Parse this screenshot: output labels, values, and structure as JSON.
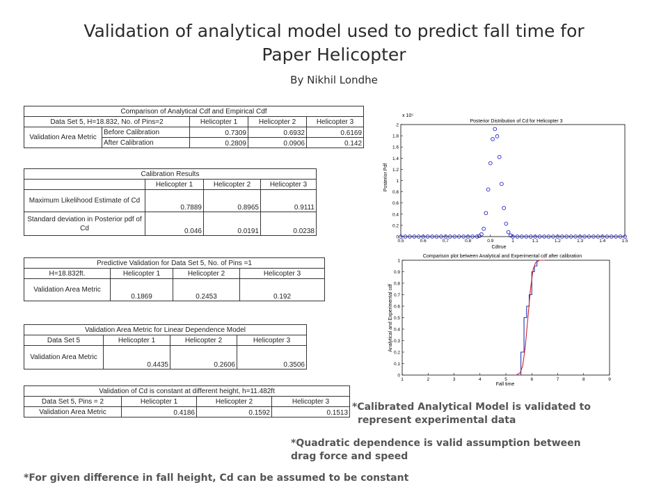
{
  "header": {
    "title_line1": "Validation of analytical model used to predict fall time for",
    "title_line2": "Paper Helicopter",
    "subtitle": "By Nikhil Londhe"
  },
  "table1": {
    "caption": "Comparison of Analytical Cdf and Empirical Cdf",
    "head": [
      "Data Set 5, H=18.832, No. of Pins=2",
      "Helicopter 1",
      "Helicopter 2",
      "Helicopter 3"
    ],
    "group_label": "Validation Area Metric",
    "rows": [
      {
        "label": "Before Calibration",
        "v": [
          "0.7309",
          "0.6932",
          "0.6169"
        ]
      },
      {
        "label": "After Calibration",
        "v": [
          "0.2809",
          "0.0906",
          "0.142"
        ]
      }
    ]
  },
  "table2": {
    "caption": "Calibration Results",
    "head": [
      "",
      "Helicopter 1",
      "Helicopter 2",
      "Helicopter 3"
    ],
    "rows": [
      {
        "label": "Maximum Likelihood Estimate of Cd",
        "v": [
          "0.7889",
          "0.8965",
          "0.9111"
        ]
      },
      {
        "label": "Standard deviation in Posterior pdf of Cd",
        "v": [
          "0.046",
          "0.0191",
          "0.0238"
        ]
      }
    ]
  },
  "table3": {
    "caption": "Predictive Validation for Data Set 5, No. of Pins =1",
    "head": [
      "H=18.832ft.",
      "Helicopter 1",
      "Helicopter 2",
      "Helicopter 3"
    ],
    "rows": [
      {
        "label": "Validation Area Metric",
        "v": [
          "0.1869",
          "0.2453",
          "0.192"
        ]
      }
    ]
  },
  "table4": {
    "caption": "Validation Area Metric for Linear Dependence Model",
    "head": [
      "Data Set 5",
      "Helicopter 1",
      "Helicopter 2",
      "Helicopter 3"
    ],
    "rows": [
      {
        "label": "Validation Area Metric",
        "v": [
          "0.4435",
          "0.2606",
          "0.3506"
        ]
      }
    ]
  },
  "table5": {
    "caption": "Validation of Cd is constant at different height, h=11.482ft",
    "head": [
      "Data Set 5, Pins = 2",
      "Helicopter 1",
      "Helicopter 2",
      "Helicopter 3"
    ],
    "rows": [
      {
        "label": "Validation Area Metric",
        "v": [
          "0.4186",
          "0.1592",
          "0.1513"
        ]
      }
    ]
  },
  "notes": {
    "n1_line1": "*Calibrated Analytical Model is validated to",
    "n1_line2": "represent experimental data",
    "n2_line1": "*Quadratic dependence is valid assumption between",
    "n2_line2": "drag force and speed",
    "n3": "*For given difference in fall height, Cd can be assumed to be constant"
  },
  "chart_data": [
    {
      "type": "scatter",
      "title": "Posterior Distribution of Cd for Helicopter 3",
      "xlabel": "Cdtrue",
      "ylabel": "Posterior Pdf",
      "exponent_label": "x 10⁵",
      "xlim": [
        0.5,
        1.5
      ],
      "ylim": [
        0,
        2.0
      ],
      "xticks": [
        "0.5",
        "0.6",
        "0.7",
        "0.8",
        "0.9",
        "1",
        "1.1",
        "1.2",
        "1.3",
        "1.4",
        "1.5"
      ],
      "yticks": [
        "0",
        "0.2",
        "0.4",
        "0.6",
        "0.8",
        "1",
        "1.2",
        "1.4",
        "1.6",
        "1.8",
        "2"
      ],
      "marker_color": "#2222cc",
      "points": [
        [
          0.5,
          0
        ],
        [
          0.52,
          0
        ],
        [
          0.54,
          0
        ],
        [
          0.56,
          0
        ],
        [
          0.58,
          0
        ],
        [
          0.6,
          0
        ],
        [
          0.62,
          0
        ],
        [
          0.64,
          0
        ],
        [
          0.66,
          0
        ],
        [
          0.68,
          0
        ],
        [
          0.7,
          0
        ],
        [
          0.72,
          0
        ],
        [
          0.74,
          0
        ],
        [
          0.76,
          0
        ],
        [
          0.78,
          0
        ],
        [
          0.8,
          0
        ],
        [
          0.82,
          0
        ],
        [
          0.84,
          0
        ],
        [
          0.85,
          0.01
        ],
        [
          0.86,
          0.04
        ],
        [
          0.87,
          0.14
        ],
        [
          0.88,
          0.42
        ],
        [
          0.89,
          0.84
        ],
        [
          0.9,
          1.31
        ],
        [
          0.91,
          1.74
        ],
        [
          0.92,
          1.92
        ],
        [
          0.93,
          1.79
        ],
        [
          0.94,
          1.42
        ],
        [
          0.95,
          0.94
        ],
        [
          0.96,
          0.51
        ],
        [
          0.97,
          0.23
        ],
        [
          0.98,
          0.08
        ],
        [
          0.99,
          0.02
        ],
        [
          1.0,
          0
        ],
        [
          1.02,
          0
        ],
        [
          1.04,
          0
        ],
        [
          1.06,
          0
        ],
        [
          1.08,
          0
        ],
        [
          1.1,
          0
        ],
        [
          1.12,
          0
        ],
        [
          1.14,
          0
        ],
        [
          1.16,
          0
        ],
        [
          1.18,
          0
        ],
        [
          1.2,
          0
        ],
        [
          1.22,
          0
        ],
        [
          1.24,
          0
        ],
        [
          1.26,
          0
        ],
        [
          1.28,
          0
        ],
        [
          1.3,
          0
        ],
        [
          1.32,
          0
        ],
        [
          1.34,
          0
        ],
        [
          1.36,
          0
        ],
        [
          1.38,
          0
        ],
        [
          1.4,
          0
        ],
        [
          1.42,
          0
        ],
        [
          1.44,
          0
        ],
        [
          1.46,
          0
        ],
        [
          1.48,
          0
        ],
        [
          1.5,
          0
        ]
      ]
    },
    {
      "type": "line",
      "title": "Comparison plot between Analytical and Experimental cdf after calibration",
      "xlabel": "Fall time",
      "ylabel": "Analytical and Experimental cdf",
      "xlim": [
        1,
        9
      ],
      "ylim": [
        0,
        1
      ],
      "xticks": [
        "1",
        "2",
        "3",
        "4",
        "5",
        "6",
        "7",
        "8",
        "9"
      ],
      "yticks": [
        "0",
        "0.1",
        "0.2",
        "0.3",
        "0.4",
        "0.5",
        "0.6",
        "0.7",
        "0.8",
        "0.9",
        "1"
      ],
      "series": [
        {
          "color": "#2233bb",
          "step": true,
          "x": [
            5.58,
            5.58,
            5.7,
            5.7,
            5.8,
            5.8,
            5.9,
            5.9,
            6.0,
            6.0,
            6.1,
            6.1,
            6.2,
            6.2,
            6.5
          ],
          "y": [
            0,
            0.2,
            0.2,
            0.5,
            0.5,
            0.6,
            0.6,
            0.7,
            0.7,
            0.9,
            0.9,
            0.95,
            0.95,
            1,
            1
          ]
        },
        {
          "color": "#cc2222",
          "step": false,
          "x": [
            5.4,
            5.55,
            5.65,
            5.75,
            5.85,
            5.95,
            6.05,
            6.15,
            6.3,
            6.5
          ],
          "y": [
            0,
            0.02,
            0.08,
            0.25,
            0.5,
            0.75,
            0.92,
            0.98,
            1,
            1
          ]
        }
      ]
    }
  ]
}
